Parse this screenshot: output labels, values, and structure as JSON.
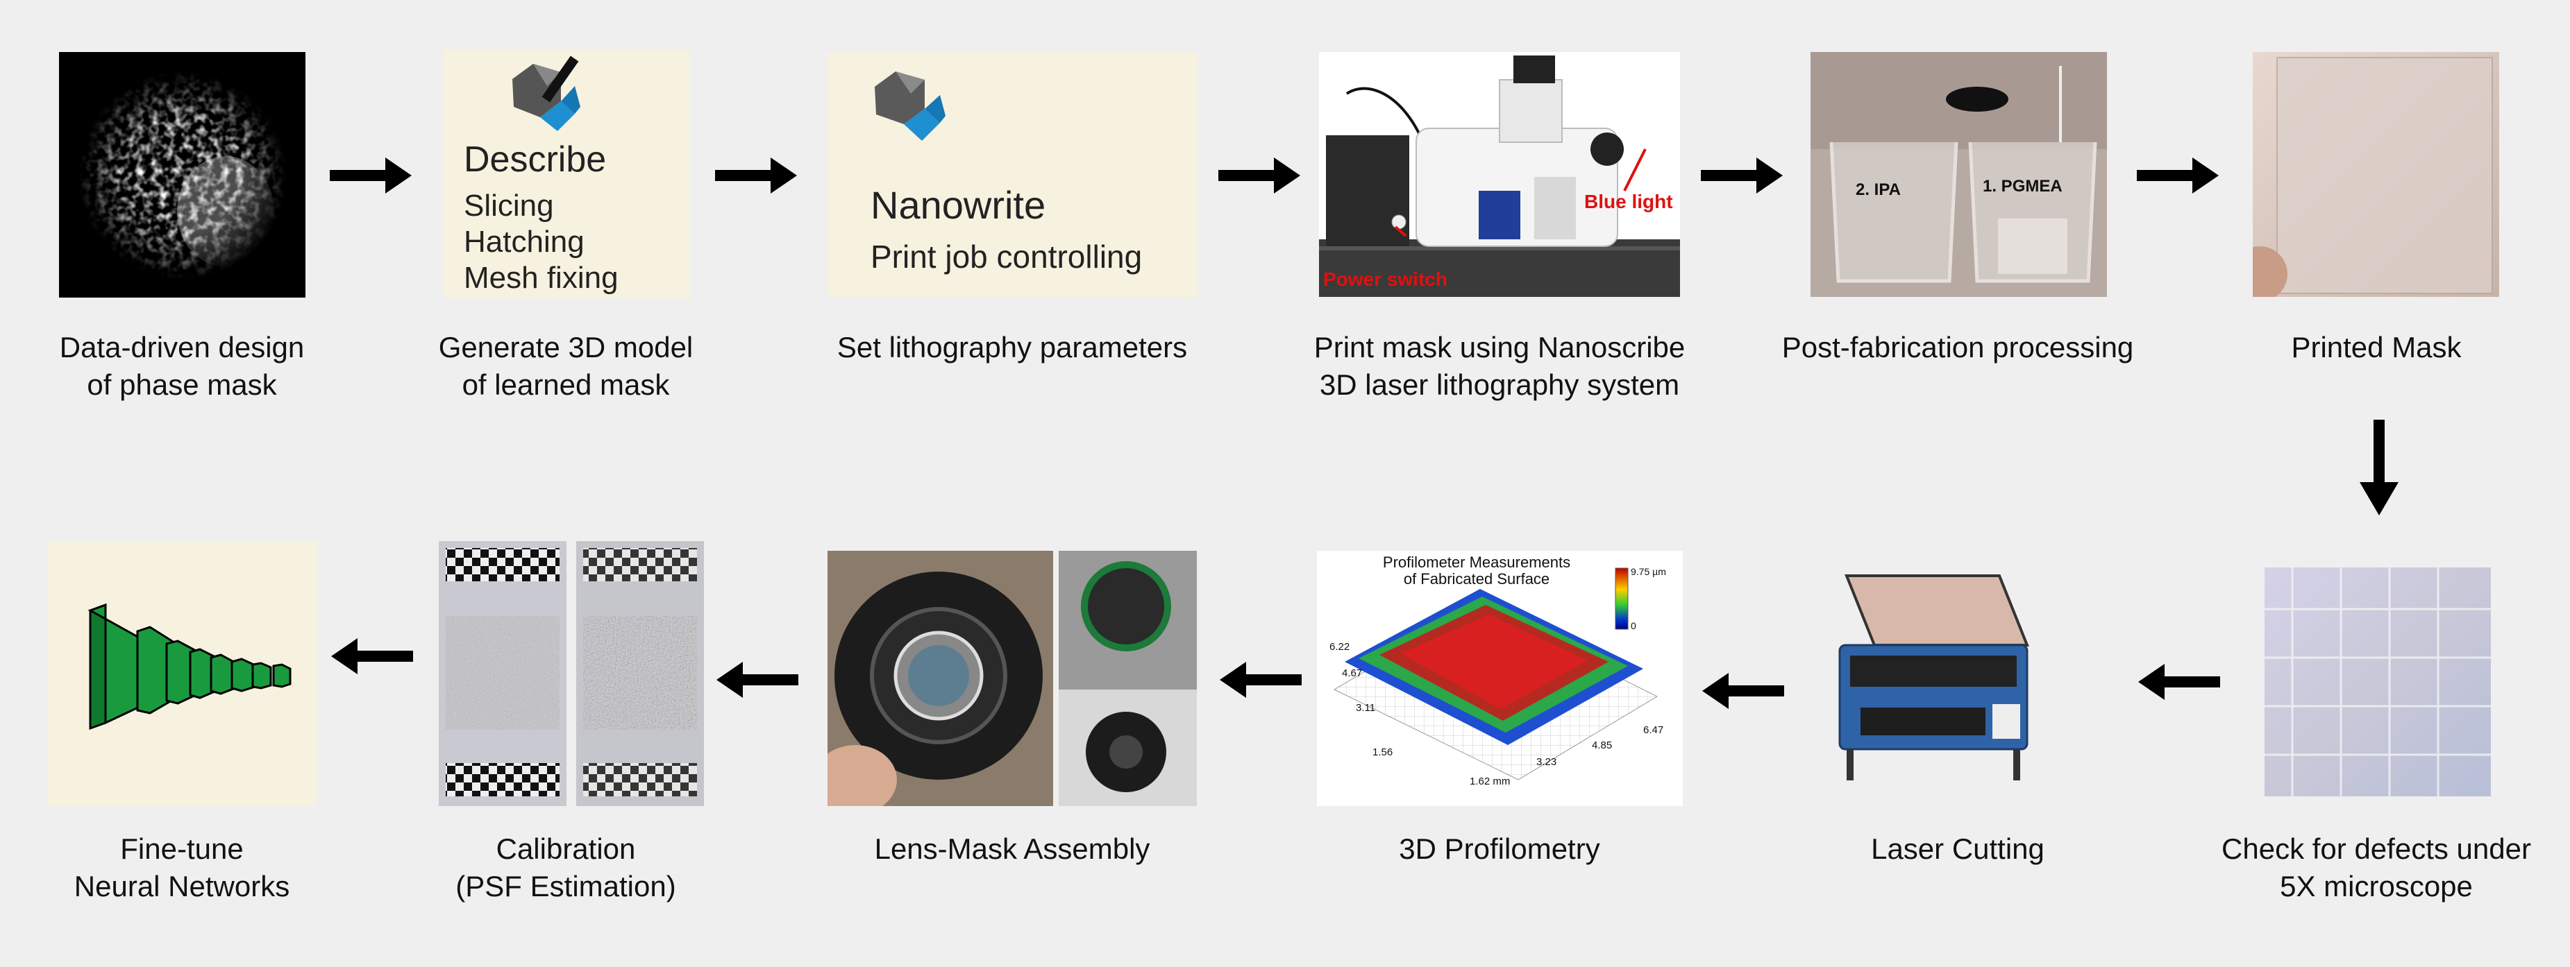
{
  "steps": [
    {
      "line1": "Data-driven design",
      "line2": "of phase mask"
    },
    {
      "line1": "Generate 3D model",
      "line2": "of learned mask"
    },
    {
      "line1": "Set lithography parameters",
      "line2": ""
    },
    {
      "line1": "Print mask using Nanoscribe",
      "line2": "3D laser lithography system"
    },
    {
      "line1": "Post-fabrication processing",
      "line2": ""
    },
    {
      "line1": "Printed Mask",
      "line2": ""
    },
    {
      "line1": "Check for defects under",
      "line2": "5X microscope"
    },
    {
      "line1": "Laser Cutting",
      "line2": ""
    },
    {
      "line1": "3D Profilometry",
      "line2": ""
    },
    {
      "line1": "Lens-Mask Assembly",
      "line2": ""
    },
    {
      "line1": "Calibration",
      "line2": "(PSF Estimation)"
    },
    {
      "line1": "Fine-tune",
      "line2": "Neural Networks"
    }
  ],
  "describe": {
    "title": "Describe",
    "item1": "Slicing",
    "item2": "Hatching",
    "item3": "Mesh fixing"
  },
  "nanowrite": {
    "title": "Nanowrite",
    "subtitle": "Print job controlling"
  },
  "microscope": {
    "label_blue": "Blue light",
    "label_power": "Power switch"
  },
  "beakers": {
    "label_left": "2. IPA",
    "label_right": "1. PGMEA"
  },
  "profilometer": {
    "title1": "Profilometer Measurements",
    "title2": "of Fabricated Surface",
    "cbar_max": "9.75 µm",
    "cbar_min": "0",
    "ticks_left": [
      "6.22",
      "4.67",
      "3.11",
      "1.56"
    ],
    "ticks_bottom": [
      "1.62 mm",
      "3.23",
      "4.85",
      "6.47"
    ]
  },
  "colors": {
    "arrow": "#000000",
    "nn_green": "#1a9a3e",
    "panel_cream": "#f7f2e0"
  }
}
